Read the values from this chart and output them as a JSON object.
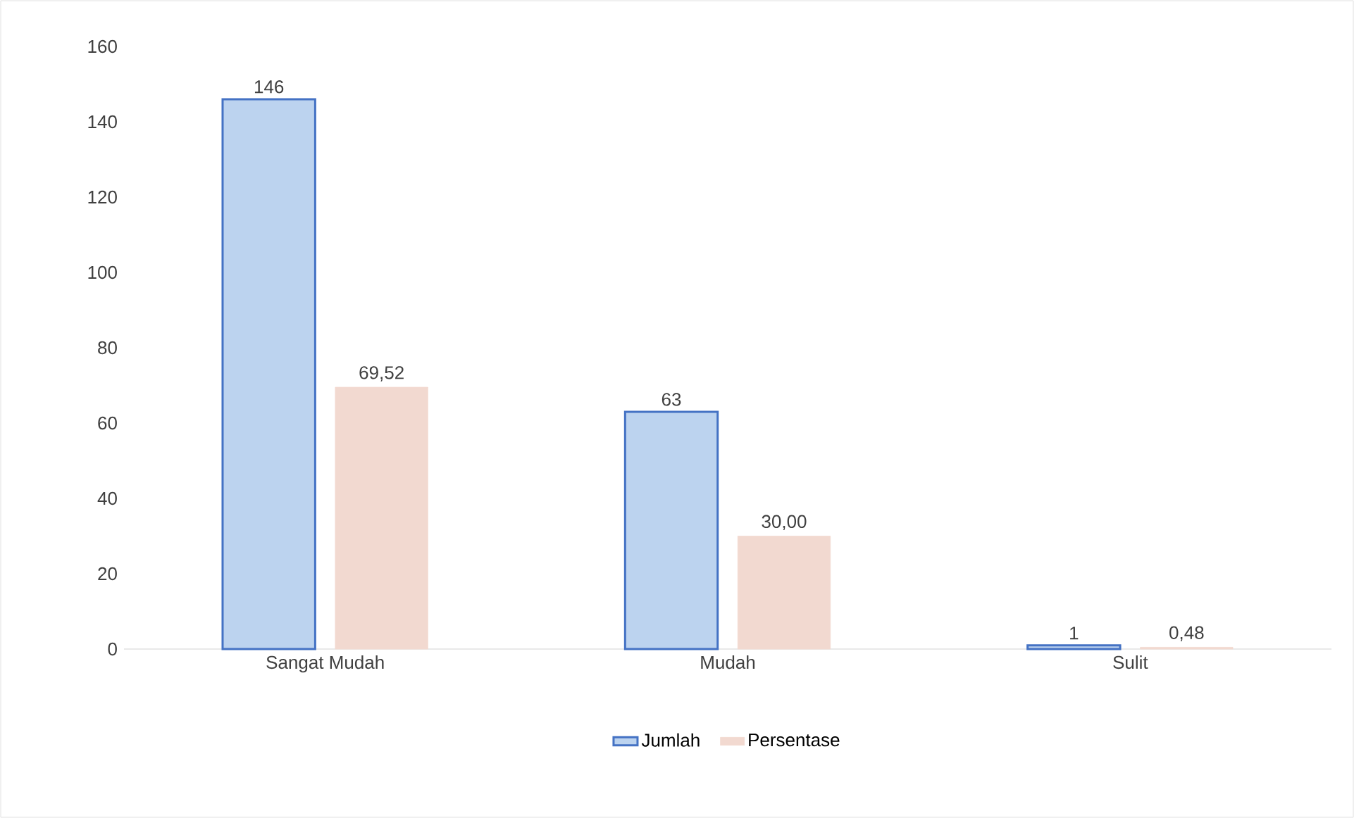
{
  "chart_data": {
    "type": "bar",
    "categories": [
      "Sangat Mudah",
      "Mudah",
      "Sulit"
    ],
    "series": [
      {
        "name": "Jumlah",
        "color": "#bcd3ef",
        "values": [
          146,
          63,
          1
        ],
        "value_labels": [
          "146",
          "63",
          "1"
        ]
      },
      {
        "name": "Persentase",
        "color": "#f2d9d0",
        "values": [
          69.52,
          30.0,
          0.48
        ],
        "value_labels": [
          "69,52",
          "30,00",
          "0,48"
        ]
      }
    ],
    "ylim": [
      0,
      160
    ],
    "yticks": [
      0,
      20,
      40,
      60,
      80,
      100,
      120,
      140,
      160
    ],
    "grid": false,
    "legend": "bottom"
  }
}
